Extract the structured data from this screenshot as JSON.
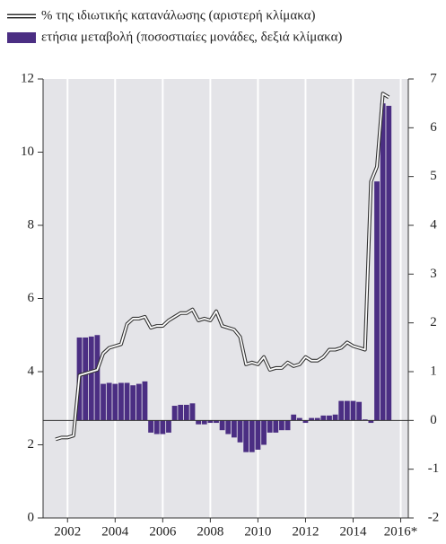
{
  "chart_data": {
    "type": "combo",
    "categories": [
      null,
      null,
      "2002",
      null,
      null,
      null,
      null,
      null,
      null,
      null,
      "2004",
      null,
      null,
      null,
      null,
      null,
      null,
      null,
      "2006",
      null,
      null,
      null,
      null,
      null,
      null,
      null,
      "2008",
      null,
      null,
      null,
      null,
      null,
      null,
      null,
      "2010",
      null,
      null,
      null,
      null,
      null,
      null,
      null,
      "2012",
      null,
      null,
      null,
      null,
      null,
      null,
      null,
      "2014",
      null,
      null,
      null,
      null,
      null,
      null,
      null,
      "2016*"
    ],
    "series": [
      {
        "name": "% της ιδιωτικής κατανάλωσης (αριστερή κλίμακα)",
        "type": "line",
        "axis": "y",
        "color": "#ffffff",
        "outline": "#333333",
        "values": [
          2.15,
          2.2,
          2.2,
          2.25,
          3.9,
          3.95,
          4.0,
          4.05,
          4.5,
          4.65,
          4.7,
          4.75,
          5.3,
          5.45,
          5.45,
          5.5,
          5.2,
          5.25,
          5.25,
          5.4,
          5.5,
          5.6,
          5.6,
          5.7,
          5.4,
          5.45,
          5.4,
          5.65,
          5.25,
          5.2,
          5.15,
          4.95,
          4.2,
          4.25,
          4.2,
          4.4,
          4.05,
          4.1,
          4.1,
          4.25,
          4.15,
          4.2,
          4.4,
          4.3,
          4.3,
          4.4,
          4.6,
          4.6,
          4.65,
          4.8,
          4.7,
          4.65,
          4.6,
          9.2,
          9.6,
          11.6,
          11.5,
          null,
          null
        ]
      },
      {
        "name": "ετήσια μεταβολή (ποσοστιαίες μονάδες, δεξιά κλίμακα)",
        "type": "bar",
        "axis": "y2",
        "color": "#4b2e83",
        "values": [
          null,
          null,
          null,
          null,
          1.7,
          1.7,
          1.72,
          1.75,
          0.75,
          0.77,
          0.75,
          0.77,
          0.77,
          0.72,
          0.75,
          0.8,
          -0.25,
          -0.28,
          -0.28,
          -0.25,
          0.3,
          0.32,
          0.32,
          0.35,
          -0.08,
          -0.08,
          -0.05,
          -0.05,
          -0.2,
          -0.28,
          -0.35,
          -0.45,
          -0.65,
          -0.65,
          -0.6,
          -0.5,
          -0.25,
          -0.25,
          -0.2,
          -0.2,
          0.12,
          0.05,
          -0.05,
          0.05,
          0.05,
          0.1,
          0.1,
          0.12,
          0.4,
          0.4,
          0.4,
          0.38,
          0.02,
          -0.05,
          4.9,
          6.5,
          6.45,
          null,
          null
        ]
      }
    ],
    "ylim": [
      0,
      12
    ],
    "yticks": [
      0,
      2,
      4,
      6,
      8,
      10,
      12
    ],
    "y2lim": [
      -2,
      7
    ],
    "y2ticks": [
      -2,
      -1,
      0,
      1,
      2,
      3,
      4,
      5,
      6,
      7
    ],
    "grid": true,
    "background": "#e4e4e8"
  }
}
